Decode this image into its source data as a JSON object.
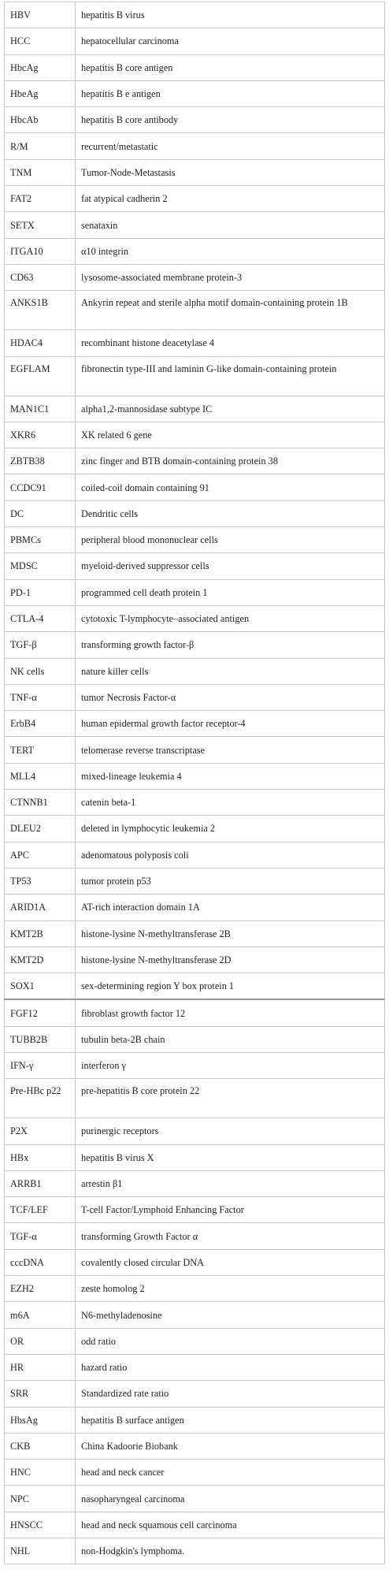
{
  "rows": [
    {
      "abbr": "HBV",
      "def": "hepatitis B virus"
    },
    {
      "abbr": "HCC",
      "def": "hepatocellular carcinoma"
    },
    {
      "abbr": "HbcAg",
      "def": "hepatitis B core antigen"
    },
    {
      "abbr": "HbeAg",
      "def": "hepatitis B e antigen"
    },
    {
      "abbr": "HbcAb",
      "def": "hepatitis B core antibody"
    },
    {
      "abbr": "R/M",
      "def": "recurrent/metastatic"
    },
    {
      "abbr": "TNM",
      "def": "Tumor-Node-Metastasis"
    },
    {
      "abbr": "FAT2",
      "def": "fat atypical cadherin 2"
    },
    {
      "abbr": "SETX",
      "def": "senataxin"
    },
    {
      "abbr": "ITGA10",
      "def": "α10 integrin"
    },
    {
      "abbr": "CD63",
      "def": "lysosome-associated membrane protein-3"
    },
    {
      "abbr": "ANKS1B",
      "def": "Ankyrin repeat and sterile alpha motif domain-containing protein 1B"
    },
    {
      "abbr": "HDAC4",
      "def": "recombinant histone deacetylase 4"
    },
    {
      "abbr": "EGFLAM",
      "def": "fibronectin type-III and laminin G-like domain-containing protein"
    },
    {
      "abbr": "MAN1C1",
      "def": "alpha1,2-mannosidase subtype IC"
    },
    {
      "abbr": "XKR6",
      "def": "XK related 6 gene"
    },
    {
      "abbr": "ZBTB38",
      "def": "zinc finger and BTB domain-containing protein 38"
    },
    {
      "abbr": "CCDC91",
      "def": "coiled-coil domain containing 91"
    },
    {
      "abbr": "DC",
      "def": "Dendritic cells"
    },
    {
      "abbr": "PBMCs",
      "def": "peripheral blood mononuclear cells"
    },
    {
      "abbr": "MDSC",
      "def": "myeloid-derived suppressor cells"
    },
    {
      "abbr": "PD-1",
      "def": "programmed cell death protein 1"
    },
    {
      "abbr": "CTLA-4",
      "def": "cytotoxic T-lymphocyte–associated antigen"
    },
    {
      "abbr": "TGF-β",
      "def": "transforming growth factor-β"
    },
    {
      "abbr": "NK cells",
      "def": "nature killer cells"
    },
    {
      "abbr": "TNF-α",
      "def": "tumor Necrosis Factor-α"
    },
    {
      "abbr": "ErbB4",
      "def": "human epidermal growth factor receptor-4"
    },
    {
      "abbr": "TERT",
      "def": "telomerase reverse transcriptase"
    },
    {
      "abbr": "MLL4",
      "def": "mixed-lineage leukemia 4"
    },
    {
      "abbr": "CTNNB1",
      "def": "catenin beta-1"
    },
    {
      "abbr": "DLEU2",
      "def": "deleted in lymphocytic leukemia 2"
    },
    {
      "abbr": "APC",
      "def": "adenomatous polyposis coli"
    },
    {
      "abbr": "TP53",
      "def": "tumor protein p53"
    },
    {
      "abbr": "ARID1A",
      "def": "AT-rich interaction domain 1A"
    },
    {
      "abbr": "KMT2B",
      "def": "histone-lysine N-methyltransferase 2B"
    },
    {
      "abbr": "KMT2D",
      "def": "histone-lysine N-methyltransferase 2D"
    },
    {
      "abbr": "SOX1",
      "def": "sex-determining region Y box protein 1"
    },
    {
      "abbr": "FGF12",
      "def": "fibroblast growth factor 12"
    },
    {
      "abbr": "TUBB2B",
      "def": "tubulin beta-2B chain"
    },
    {
      "abbr": "IFN-γ",
      "def": "interferon γ"
    },
    {
      "abbr": "Pre-HBc p22",
      "def": "pre-hepatitis B core protein 22"
    },
    {
      "abbr": "P2X",
      "def": "purinergic receptors"
    },
    {
      "abbr": "HBx",
      "def": "hepatitis B virus X"
    },
    {
      "abbr": "ARRB1",
      "def": "arrestin β1"
    },
    {
      "abbr": "TCF/LEF",
      "def": "T-cell Factor/Lymphoid Enhancing Factor"
    },
    {
      "abbr": "TGF-α",
      "def": "transforming Growth Factor α"
    },
    {
      "abbr": "cccDNA",
      "def": "covalently closed circular DNA"
    },
    {
      "abbr": "EZH2",
      "def": "zeste homolog 2"
    },
    {
      "abbr": "m6A",
      "def": "N6-methyladenosine"
    },
    {
      "abbr": "OR",
      "def": "odd ratio"
    },
    {
      "abbr": "HR",
      "def": "hazard ratio"
    },
    {
      "abbr": "SRR",
      "def": "Standardized rate ratio"
    },
    {
      "abbr": "HbsAg",
      "def": "hepatitis B surface antigen"
    },
    {
      "abbr": "CKB",
      "def": "China Kadoorie Biobank"
    },
    {
      "abbr": "HNC",
      "def": "head and neck cancer"
    },
    {
      "abbr": "NPC",
      "def": "nasopharyngeal carcinoma"
    },
    {
      "abbr": "HNSCC",
      "def": "head and neck squamous cell carcinoma"
    },
    {
      "abbr": "NHL",
      "def": "non-Hodgkin's lymphoma."
    }
  ]
}
